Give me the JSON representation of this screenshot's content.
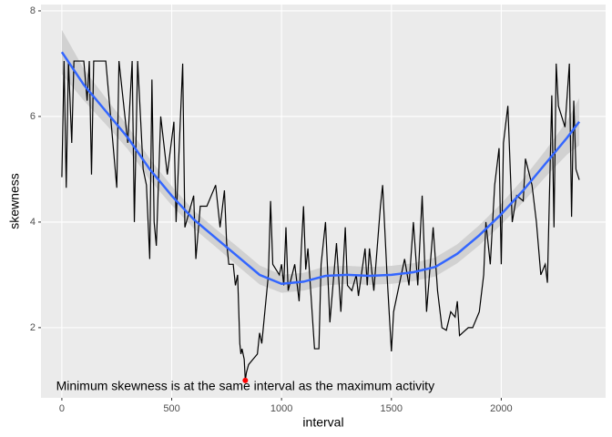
{
  "chart_data": {
    "type": "line",
    "x_label": "interval",
    "y_label": "skewness",
    "annotation": "Minimum skewness is at the same interval as the maximum activity",
    "xlim": [
      -95,
      2475
    ],
    "ylim": [
      0.67,
      8.12
    ],
    "xticks": [
      0,
      500,
      1000,
      1500,
      2000
    ],
    "yticks": [
      2,
      4,
      6,
      8
    ],
    "grid": true,
    "line": {
      "color": "#000000",
      "x": [
        0,
        10,
        20,
        30,
        45,
        55,
        100,
        115,
        125,
        135,
        145,
        200,
        250,
        260,
        300,
        320,
        330,
        345,
        370,
        385,
        400,
        410,
        420,
        430,
        450,
        480,
        510,
        520,
        540,
        550,
        560,
        600,
        610,
        630,
        660,
        700,
        720,
        740,
        750,
        760,
        780,
        790,
        800,
        810,
        815,
        820,
        830,
        835,
        840,
        850,
        870,
        890,
        900,
        910,
        940,
        950,
        960,
        990,
        1000,
        1010,
        1020,
        1030,
        1060,
        1080,
        1090,
        1100,
        1110,
        1120,
        1150,
        1170,
        1180,
        1200,
        1220,
        1250,
        1270,
        1290,
        1300,
        1320,
        1340,
        1350,
        1380,
        1390,
        1400,
        1420,
        1450,
        1460,
        1480,
        1500,
        1510,
        1530,
        1560,
        1580,
        1600,
        1620,
        1640,
        1660,
        1690,
        1710,
        1730,
        1750,
        1770,
        1790,
        1800,
        1810,
        1850,
        1870,
        1900,
        1920,
        1930,
        1950,
        1970,
        1990,
        2000,
        2010,
        2030,
        2050,
        2070,
        2100,
        2110,
        2140,
        2160,
        2180,
        2200,
        2210,
        2230,
        2240,
        2250,
        2260,
        2290,
        2310,
        2320,
        2330,
        2340,
        2355
      ],
      "values": [
        4.85,
        7.05,
        4.65,
        7.05,
        5.5,
        7.05,
        7.05,
        6.3,
        7.05,
        4.9,
        7.05,
        7.05,
        4.65,
        7.05,
        5.5,
        7.05,
        4.0,
        7.05,
        5.0,
        4.7,
        3.3,
        6.7,
        4.0,
        3.55,
        6.0,
        4.9,
        5.9,
        4.0,
        6.0,
        7.0,
        3.9,
        4.5,
        3.3,
        4.3,
        4.3,
        4.7,
        3.9,
        4.6,
        3.6,
        3.2,
        3.2,
        2.8,
        3.0,
        1.7,
        1.5,
        1.6,
        1.4,
        1.0,
        1.15,
        1.3,
        1.4,
        1.5,
        1.9,
        1.7,
        3.0,
        4.4,
        3.2,
        3.0,
        3.2,
        2.8,
        3.9,
        2.7,
        3.2,
        2.5,
        3.5,
        4.3,
        3.1,
        3.5,
        1.6,
        1.6,
        3.2,
        4.0,
        2.1,
        3.6,
        2.3,
        3.9,
        2.8,
        2.7,
        3.0,
        2.6,
        3.5,
        2.8,
        3.5,
        2.7,
        4.3,
        4.7,
        3.0,
        1.55,
        2.3,
        2.7,
        3.3,
        2.8,
        4.0,
        2.8,
        4.5,
        2.3,
        3.9,
        2.7,
        2.0,
        1.95,
        2.3,
        2.2,
        2.5,
        1.85,
        2.0,
        2.0,
        2.3,
        3.0,
        4.0,
        3.2,
        4.7,
        5.4,
        3.2,
        5.5,
        6.2,
        4.0,
        4.5,
        4.4,
        5.2,
        4.7,
        4.0,
        3.0,
        3.2,
        2.85,
        6.4,
        3.9,
        7.0,
        6.2,
        5.8,
        7.0,
        4.1,
        6.3,
        5.0,
        4.8
      ]
    },
    "smooth": {
      "color": "#3366ff",
      "band_color": "#cccccc",
      "x": [
        0,
        100,
        200,
        300,
        400,
        500,
        600,
        700,
        800,
        900,
        1000,
        1100,
        1200,
        1300,
        1400,
        1500,
        1600,
        1700,
        1800,
        1900,
        2000,
        2100,
        2200,
        2300,
        2355
      ],
      "values": [
        7.22,
        6.6,
        6.1,
        5.6,
        5.0,
        4.5,
        4.05,
        3.7,
        3.35,
        3.0,
        2.83,
        2.87,
        2.98,
        3.0,
        2.98,
        3.0,
        3.05,
        3.15,
        3.4,
        3.75,
        4.15,
        4.6,
        5.1,
        5.6,
        5.9
      ],
      "lower": [
        6.8,
        6.3,
        5.85,
        5.38,
        4.8,
        4.32,
        3.88,
        3.53,
        3.17,
        2.82,
        2.66,
        2.7,
        2.8,
        2.83,
        2.81,
        2.83,
        2.88,
        2.97,
        3.22,
        3.56,
        3.95,
        4.38,
        4.85,
        5.28,
        5.45
      ],
      "upper": [
        7.64,
        6.9,
        6.35,
        5.82,
        5.2,
        4.68,
        4.22,
        3.87,
        3.53,
        3.18,
        3.0,
        3.04,
        3.16,
        3.17,
        3.15,
        3.17,
        3.22,
        3.33,
        3.58,
        3.94,
        4.35,
        4.82,
        5.35,
        5.92,
        6.35
      ]
    },
    "highlight": {
      "x": 835,
      "y": 1.0,
      "color": "#ff0000"
    }
  }
}
